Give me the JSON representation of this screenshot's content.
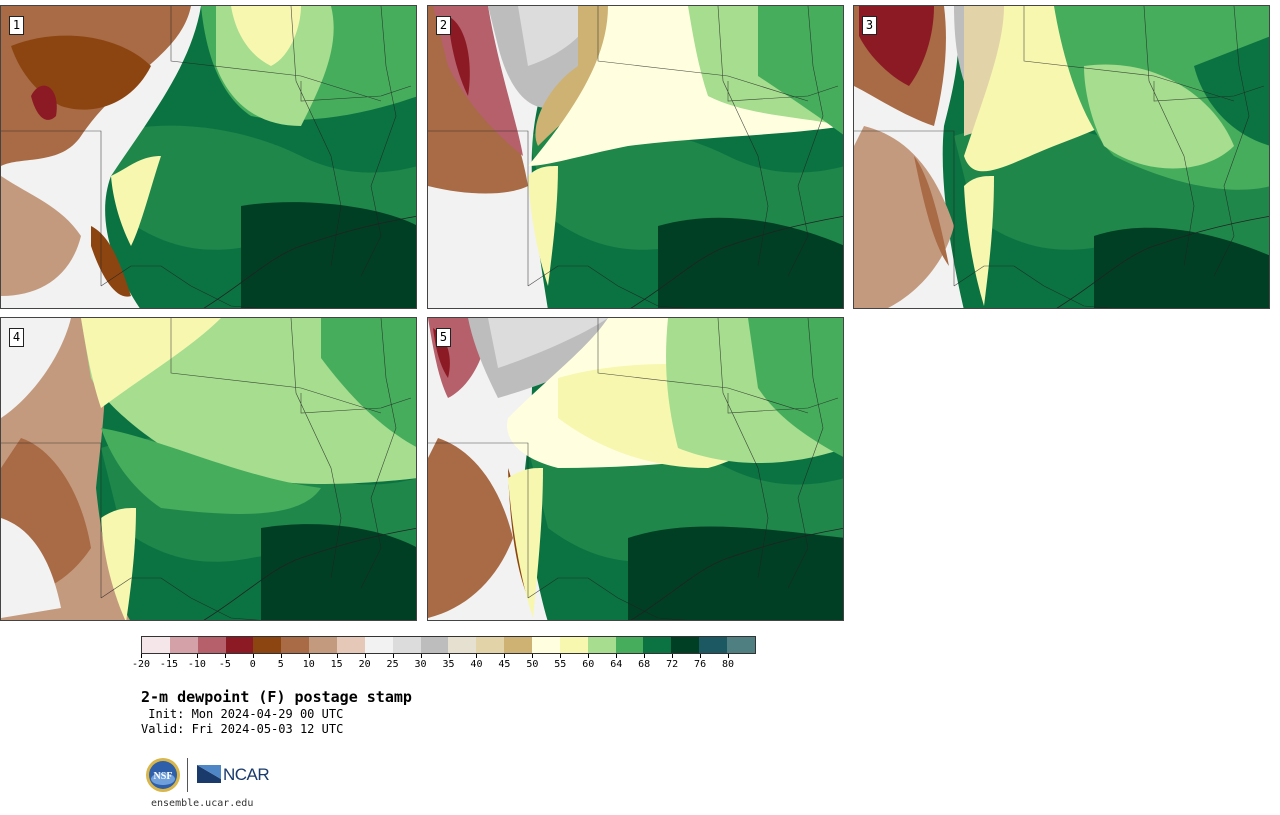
{
  "panels": [
    {
      "label": "1",
      "variant": 1
    },
    {
      "label": "2",
      "variant": 2
    },
    {
      "label": "3",
      "variant": 3
    },
    {
      "label": "4",
      "variant": 4
    },
    {
      "label": "5",
      "variant": 5
    }
  ],
  "colorbar": {
    "colors": [
      "#f5e6ea",
      "#d4a1a8",
      "#b5606a",
      "#8c1a24",
      "#8c4510",
      "#a86b45",
      "#c49a7f",
      "#e6c8b8",
      "#f2f2f2",
      "#dcdcdc",
      "#bdbdbd",
      "#e6e0d0",
      "#e3d3a8",
      "#cdb273",
      "#ffffe0",
      "#f7f7b0",
      "#a6dd8f",
      "#46ad5c",
      "#0b7341",
      "#003f24",
      "#1b5861",
      "#4f7f80"
    ],
    "tick_labels": [
      "-20",
      "-15",
      "-10",
      "-5",
      "0",
      "5",
      "10",
      "15",
      "20",
      "25",
      "30",
      "35",
      "40",
      "45",
      "50",
      "55",
      "60",
      "64",
      "68",
      "72",
      "76",
      "80"
    ]
  },
  "title": "2-m dewpoint (F) postage stamp",
  "init": " Init: Mon 2024-04-29 00 UTC",
  "valid": "Valid: Fri 2024-05-03 12 UTC",
  "logos": {
    "nsf": "NSF",
    "ncar": "NCAR"
  },
  "website": "ensemble.ucar.edu"
}
